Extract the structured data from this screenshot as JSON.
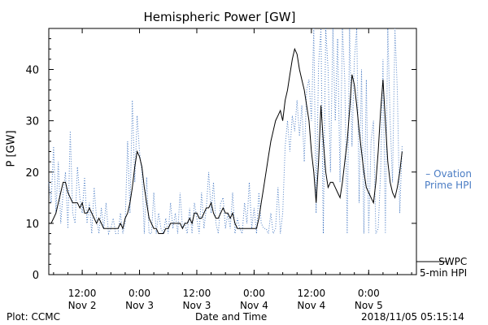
{
  "title": "Hemispheric Power [GW]",
  "footer": {
    "plot_credit": "Plot: CCMC",
    "xlabel": "Date and Time",
    "timestamp": "2018/11/05 05:15:14"
  },
  "colors": {
    "ovation": "#4a7cc4",
    "swpc": "#000000",
    "axis": "#000000"
  },
  "chart_data": {
    "type": "line",
    "title": "Hemispheric Power [GW]",
    "ylabel": "P [GW]",
    "xlabel": "Date and Time",
    "ylim": [
      0,
      48
    ],
    "yticks": [
      0,
      10,
      20,
      30,
      40
    ],
    "xlim_hours": [
      0,
      77
    ],
    "xticks": [
      {
        "pos": 7,
        "line1": "12:00",
        "line2": "Nov 2"
      },
      {
        "pos": 19,
        "line1": "0:00",
        "line2": "Nov 3"
      },
      {
        "pos": 31,
        "line1": "12:00",
        "line2": "Nov 3"
      },
      {
        "pos": 43,
        "line1": "0:00",
        "line2": "Nov 4"
      },
      {
        "pos": 55,
        "line1": "12:00",
        "line2": "Nov 4"
      },
      {
        "pos": 67,
        "line1": "0:00",
        "line2": "Nov 5"
      }
    ],
    "grid": false,
    "series": [
      {
        "name": "Ovation Prime HPI",
        "legend_line1": "Ovation",
        "legend_line2": "Prime HPI",
        "style": "dotted",
        "x": [
          0,
          0.5,
          1,
          1.5,
          2,
          2.5,
          3,
          3.5,
          4,
          4.5,
          5,
          5.5,
          6,
          6.5,
          7,
          7.5,
          8,
          8.5,
          9,
          9.5,
          10,
          10.5,
          11,
          11.5,
          12,
          12.5,
          13,
          13.5,
          14,
          14.5,
          15,
          15.5,
          16,
          16.5,
          17,
          17.5,
          18,
          18.5,
          19,
          19.5,
          20,
          20.5,
          21,
          21.5,
          22,
          22.5,
          23,
          23.5,
          24,
          24.5,
          25,
          25.5,
          26,
          26.5,
          27,
          27.5,
          28,
          28.5,
          29,
          29.5,
          30,
          30.5,
          31,
          31.5,
          32,
          32.5,
          33,
          33.5,
          34,
          34.5,
          35,
          35.5,
          36,
          36.5,
          37,
          37.5,
          38,
          38.5,
          39,
          39.5,
          40,
          40.5,
          41,
          41.5,
          42,
          42.5,
          43,
          43.5,
          44,
          44.5,
          45,
          45.5,
          46,
          46.5,
          47,
          47.5,
          48,
          48.5,
          49,
          49.5,
          50,
          50.5,
          51,
          51.5,
          52,
          52.5,
          53,
          53.5,
          54,
          54.5,
          55,
          55.5,
          56,
          56.5,
          57,
          57.5,
          58,
          58.5,
          59,
          59.5,
          60,
          60.5,
          61,
          61.5,
          62,
          62.5,
          63,
          63.5,
          64,
          64.5,
          65,
          65.5,
          66,
          66.5,
          67,
          67.5,
          68,
          68.5,
          69,
          69.5,
          70,
          70.5,
          71,
          71.5,
          72,
          72.5,
          73,
          73.5,
          74
        ],
        "y": [
          18,
          14,
          25,
          12,
          22,
          10,
          16,
          20,
          9,
          28,
          12,
          10,
          21,
          15,
          12,
          19,
          10,
          14,
          8,
          17,
          11,
          8,
          13,
          9,
          14,
          8,
          9,
          11,
          8,
          8,
          12,
          8,
          10,
          26,
          12,
          34,
          18,
          31,
          24,
          20,
          8,
          19,
          8,
          8,
          16,
          8,
          12,
          9,
          8,
          11,
          8,
          14,
          9,
          12,
          8,
          16,
          9,
          10,
          8,
          13,
          8,
          14,
          11,
          8,
          16,
          9,
          13,
          20,
          12,
          18,
          10,
          8,
          14,
          15,
          9,
          12,
          9,
          16,
          8,
          11,
          9,
          8,
          14,
          10,
          18,
          9,
          13,
          8,
          16,
          10,
          9,
          9,
          8,
          12,
          8,
          9,
          17,
          8,
          12,
          25,
          30,
          24,
          31,
          28,
          34,
          27,
          33,
          22,
          36,
          38,
          30,
          48,
          12,
          41,
          48,
          8,
          48,
          40,
          20,
          48,
          30,
          46,
          18,
          48,
          38,
          8,
          48,
          25,
          42,
          48,
          14,
          40,
          8,
          38,
          8,
          26,
          30,
          8,
          9,
          20,
          42,
          8,
          48,
          30,
          18,
          48,
          36,
          12,
          25
        ],
        "clip_top_indices": []
      },
      {
        "name": "SWPC 5-min HPI",
        "legend_line1": "SWPC",
        "legend_line2": "5-min HPI",
        "style": "solid",
        "x": [
          0,
          0.5,
          1,
          1.5,
          2,
          2.5,
          3,
          3.5,
          4,
          4.5,
          5,
          5.5,
          6,
          6.5,
          7,
          7.5,
          8,
          8.5,
          9,
          9.5,
          10,
          10.5,
          11,
          11.5,
          12,
          12.5,
          13,
          13.5,
          14,
          14.5,
          15,
          15.5,
          16,
          16.5,
          17,
          17.5,
          18,
          18.5,
          19,
          19.5,
          20,
          20.5,
          21,
          21.5,
          22,
          22.5,
          23,
          23.5,
          24,
          24.5,
          25,
          25.5,
          26,
          26.5,
          27,
          27.5,
          28,
          28.5,
          29,
          29.5,
          30,
          30.5,
          31,
          31.5,
          32,
          32.5,
          33,
          33.5,
          34,
          34.5,
          35,
          35.5,
          36,
          36.5,
          37,
          37.5,
          38,
          38.5,
          39,
          39.5,
          40,
          40.5,
          41,
          41.5,
          42,
          42.5,
          43,
          43.5,
          44,
          44.5,
          45,
          45.5,
          46,
          46.5,
          47,
          47.5,
          48,
          48.5,
          49,
          49.5,
          50,
          50.5,
          51,
          51.5,
          52,
          52.5,
          53,
          53.5,
          54,
          54.5,
          55,
          55.5,
          56,
          56.5,
          57,
          57.5,
          58,
          58.5,
          59,
          59.5,
          60,
          60.5,
          61,
          61.5,
          62,
          62.5,
          63,
          63.5,
          64,
          64.5,
          65,
          65.5,
          66,
          66.5,
          67,
          67.5,
          68,
          68.5,
          69,
          69.5,
          70,
          70.5,
          71,
          71.5,
          72,
          72.5,
          73,
          73.5,
          74
        ],
        "y": [
          10,
          10,
          11,
          12,
          14,
          16,
          18,
          18,
          16,
          15,
          14,
          14,
          14,
          13,
          14,
          12,
          12,
          13,
          12,
          11,
          10,
          11,
          10,
          9,
          9,
          9,
          9,
          9,
          9,
          9,
          10,
          9,
          11,
          12,
          14,
          17,
          21,
          24,
          23,
          21,
          17,
          14,
          11,
          10,
          9,
          9,
          8,
          8,
          8,
          9,
          9,
          10,
          10,
          10,
          10,
          10,
          9,
          10,
          10,
          11,
          10,
          12,
          12,
          11,
          11,
          12,
          13,
          13,
          14,
          12,
          11,
          11,
          12,
          13,
          12,
          12,
          11,
          12,
          10,
          9,
          9,
          9,
          9,
          9,
          9,
          9,
          9,
          9,
          11,
          14,
          17,
          20,
          23,
          26,
          28,
          30,
          31,
          32,
          30,
          34,
          36,
          39,
          42,
          44,
          43,
          40,
          38,
          36,
          33,
          30,
          24,
          20,
          14,
          22,
          33,
          26,
          20,
          17,
          18,
          18,
          17,
          16,
          15,
          18,
          22,
          26,
          32,
          39,
          37,
          33,
          28,
          24,
          20,
          17,
          16,
          15,
          14,
          18,
          24,
          32,
          38,
          30,
          22,
          18,
          16,
          15,
          17,
          20,
          24
        ],
        "clip_top_indices": []
      }
    ]
  }
}
